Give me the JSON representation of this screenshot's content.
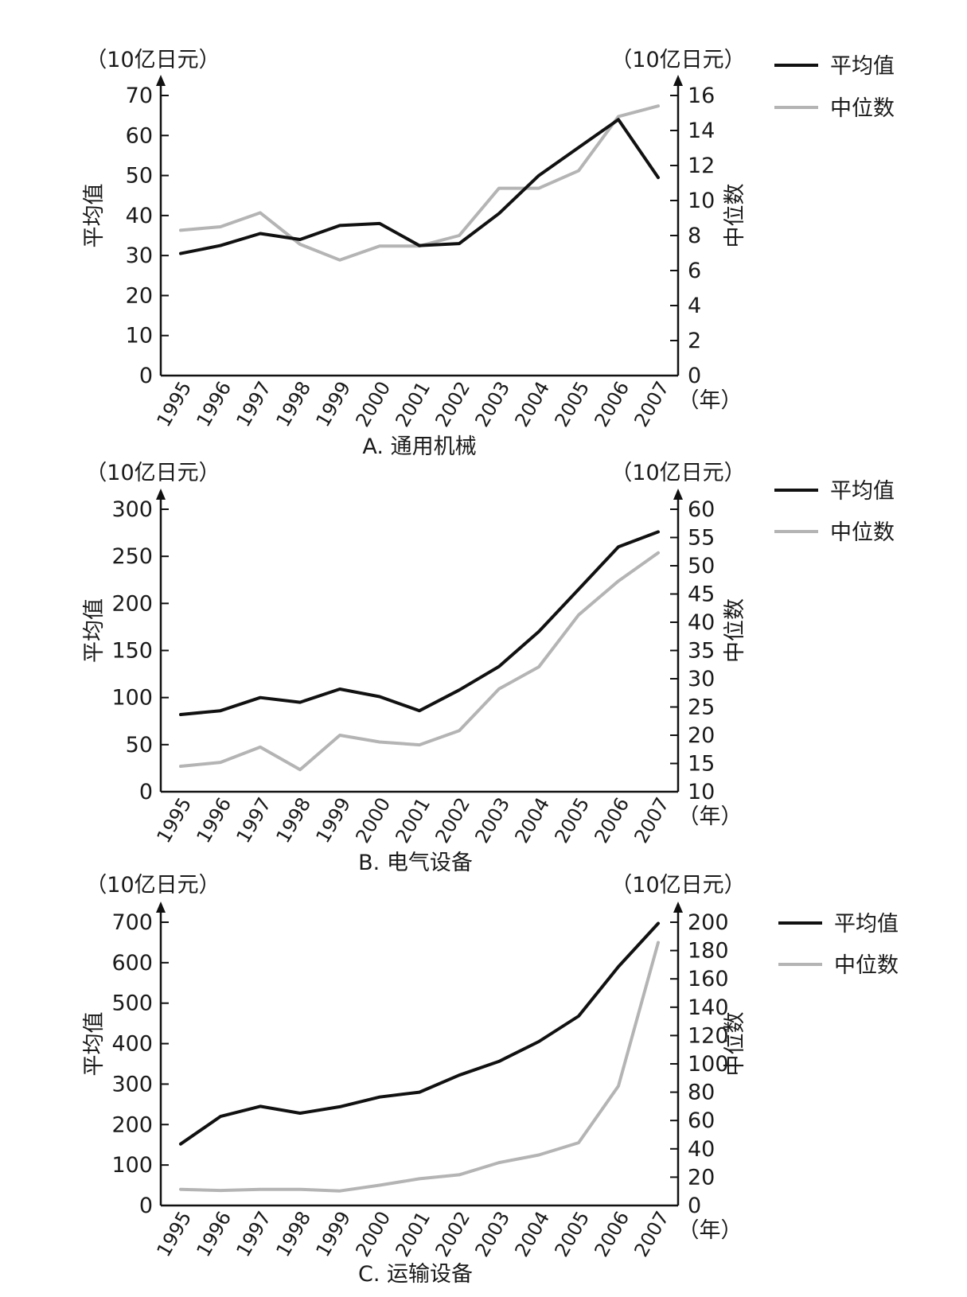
{
  "legend": {
    "mean_label": "平均值",
    "median_label": "中位数"
  },
  "colors": {
    "mean": "#111111",
    "median": "#b4b4b4"
  },
  "chart_data": [
    {
      "type": "line",
      "caption": "A.  通用机械",
      "xlabel_unit": "（年）",
      "left_unit": "（10亿日元）",
      "right_unit": "（10亿日元）",
      "ylabel": "平均值",
      "y2label": "中位数",
      "categories": [
        "1995",
        "1996",
        "1997",
        "1998",
        "1999",
        "2000",
        "2001",
        "2002",
        "2003",
        "2004",
        "2005",
        "2006",
        "2007"
      ],
      "ylim": [
        0,
        70
      ],
      "yticks": [
        0,
        10,
        20,
        30,
        40,
        50,
        60,
        70
      ],
      "y2lim": [
        0,
        16
      ],
      "y2ticks": [
        0,
        2,
        4,
        6,
        8,
        10,
        12,
        14,
        16
      ],
      "series": [
        {
          "name": "平均值",
          "axis": "left",
          "values": [
            30.5,
            32.5,
            35.5,
            34,
            37.5,
            38,
            32.5,
            33,
            40.5,
            50,
            57,
            64,
            49.5
          ]
        },
        {
          "name": "中位数",
          "axis": "right",
          "values": [
            8.3,
            8.5,
            9.3,
            7.5,
            6.6,
            7.4,
            7.4,
            8,
            10.7,
            10.7,
            11.7,
            14.8,
            15.4
          ]
        }
      ]
    },
    {
      "type": "line",
      "caption": "B.  电气设备",
      "xlabel_unit": "（年）",
      "left_unit": "（10亿日元）",
      "right_unit": "（10亿日元）",
      "ylabel": "平均值",
      "y2label": "中位数",
      "categories": [
        "1995",
        "1996",
        "1997",
        "1998",
        "1999",
        "2000",
        "2001",
        "2002",
        "2003",
        "2004",
        "2005",
        "2006",
        "2007"
      ],
      "ylim": [
        0,
        300
      ],
      "yticks": [
        0,
        50,
        100,
        150,
        200,
        250,
        300
      ],
      "y2lim": [
        10,
        60
      ],
      "y2ticks": [
        10,
        15,
        20,
        25,
        30,
        35,
        40,
        45,
        50,
        55,
        60
      ],
      "series": [
        {
          "name": "平均值",
          "axis": "left",
          "values": [
            82,
            86,
            100,
            95,
            109,
            101,
            86,
            108,
            133,
            170,
            215,
            260,
            276
          ]
        },
        {
          "name": "中位数",
          "axis": "right",
          "values": [
            14.5,
            15.2,
            17.9,
            13.9,
            20,
            18.8,
            18.3,
            20.8,
            28.2,
            32.1,
            41.3,
            47.3,
            52.3
          ]
        }
      ]
    },
    {
      "type": "line",
      "caption": "C.  运输设备",
      "xlabel_unit": "（年）",
      "left_unit": "（10亿日元）",
      "right_unit": "（10亿日元）",
      "ylabel": "平均值",
      "y2label": "中位数",
      "categories": [
        "1995",
        "1996",
        "1997",
        "1998",
        "1999",
        "2000",
        "2001",
        "2002",
        "2003",
        "2004",
        "2005",
        "2006",
        "2007"
      ],
      "ylim": [
        0,
        700
      ],
      "yticks": [
        0,
        100,
        200,
        300,
        400,
        500,
        600,
        700
      ],
      "y2lim": [
        0,
        200
      ],
      "y2ticks": [
        0,
        20,
        40,
        60,
        80,
        100,
        120,
        140,
        160,
        180,
        200
      ],
      "series": [
        {
          "name": "平均值",
          "axis": "left",
          "values": [
            152,
            220,
            245,
            228,
            244,
            268,
            280,
            322,
            356,
            405,
            468,
            590,
            697
          ]
        },
        {
          "name": "中位数",
          "axis": "right",
          "values": [
            11.4,
            10.6,
            11.4,
            11.4,
            10.3,
            14.3,
            18.9,
            21.7,
            30.3,
            35.7,
            44.3,
            84.3,
            185.7
          ]
        }
      ]
    }
  ]
}
